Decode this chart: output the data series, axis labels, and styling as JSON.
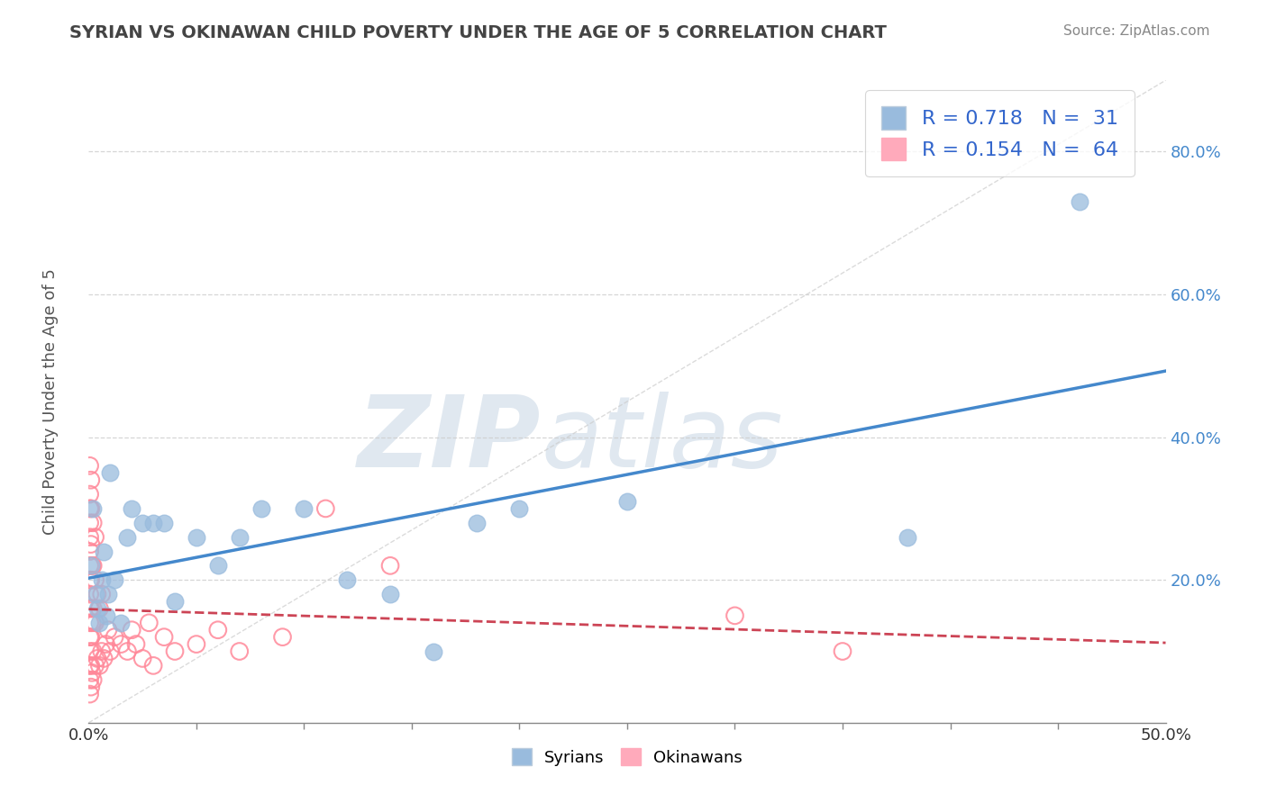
{
  "title": "SYRIAN VS OKINAWAN CHILD POVERTY UNDER THE AGE OF 5 CORRELATION CHART",
  "source": "Source: ZipAtlas.com",
  "ylabel": "Child Poverty Under the Age of 5",
  "xlim": [
    0.0,
    0.5
  ],
  "ylim": [
    0.0,
    0.9
  ],
  "ytick_vals": [
    0.2,
    0.4,
    0.6,
    0.8
  ],
  "ytick_labels": [
    "20.0%",
    "40.0%",
    "60.0%",
    "80.0%"
  ],
  "xtick_minor": [
    0.05,
    0.1,
    0.15,
    0.2,
    0.25,
    0.3,
    0.35,
    0.4,
    0.45
  ],
  "syrian_R": 0.718,
  "syrian_N": 31,
  "okinawan_R": 0.154,
  "okinawan_N": 64,
  "syrian_color": "#99BBDD",
  "syrian_edge_color": "#99BBDD",
  "okinawan_color": "#FFAABB",
  "okinawan_edge_color": "#FF8899",
  "syrian_line_color": "#4488CC",
  "okinawan_line_color": "#CC4455",
  "background_color": "#FFFFFF",
  "grid_color": "#CCCCCC",
  "watermark_zip": "ZIP",
  "watermark_atlas": "atlas",
  "watermark_color": "#E0E8F0",
  "ytick_color": "#4488CC",
  "title_color": "#444444",
  "source_color": "#888888",
  "syrian_x": [
    0.001,
    0.002,
    0.003,
    0.004,
    0.005,
    0.006,
    0.007,
    0.008,
    0.009,
    0.01,
    0.012,
    0.015,
    0.018,
    0.02,
    0.025,
    0.03,
    0.035,
    0.04,
    0.05,
    0.06,
    0.07,
    0.08,
    0.1,
    0.12,
    0.14,
    0.16,
    0.18,
    0.2,
    0.25,
    0.38,
    0.46
  ],
  "syrian_y": [
    0.22,
    0.3,
    0.18,
    0.16,
    0.14,
    0.2,
    0.24,
    0.15,
    0.18,
    0.35,
    0.2,
    0.14,
    0.26,
    0.3,
    0.28,
    0.28,
    0.28,
    0.17,
    0.26,
    0.22,
    0.26,
    0.3,
    0.3,
    0.2,
    0.18,
    0.1,
    0.28,
    0.3,
    0.31,
    0.26,
    0.73
  ],
  "okinawan_x": [
    0.0005,
    0.0005,
    0.0005,
    0.0005,
    0.0005,
    0.0005,
    0.0005,
    0.0005,
    0.0005,
    0.0005,
    0.0005,
    0.0005,
    0.0005,
    0.0005,
    0.0005,
    0.0005,
    0.001,
    0.001,
    0.001,
    0.001,
    0.001,
    0.001,
    0.001,
    0.001,
    0.0015,
    0.0015,
    0.0015,
    0.002,
    0.002,
    0.002,
    0.002,
    0.002,
    0.003,
    0.003,
    0.003,
    0.003,
    0.004,
    0.004,
    0.005,
    0.005,
    0.006,
    0.006,
    0.007,
    0.008,
    0.009,
    0.01,
    0.012,
    0.015,
    0.018,
    0.02,
    0.022,
    0.025,
    0.028,
    0.03,
    0.035,
    0.04,
    0.05,
    0.06,
    0.07,
    0.09,
    0.11,
    0.14,
    0.3,
    0.35
  ],
  "okinawan_y": [
    0.04,
    0.06,
    0.08,
    0.1,
    0.12,
    0.14,
    0.16,
    0.18,
    0.2,
    0.22,
    0.24,
    0.26,
    0.28,
    0.3,
    0.32,
    0.36,
    0.05,
    0.08,
    0.12,
    0.16,
    0.2,
    0.25,
    0.3,
    0.34,
    0.07,
    0.14,
    0.22,
    0.06,
    0.1,
    0.16,
    0.22,
    0.28,
    0.08,
    0.14,
    0.2,
    0.26,
    0.09,
    0.18,
    0.08,
    0.16,
    0.1,
    0.18,
    0.09,
    0.11,
    0.13,
    0.1,
    0.12,
    0.11,
    0.1,
    0.13,
    0.11,
    0.09,
    0.14,
    0.08,
    0.12,
    0.1,
    0.11,
    0.13,
    0.1,
    0.12,
    0.3,
    0.22,
    0.15,
    0.1
  ]
}
